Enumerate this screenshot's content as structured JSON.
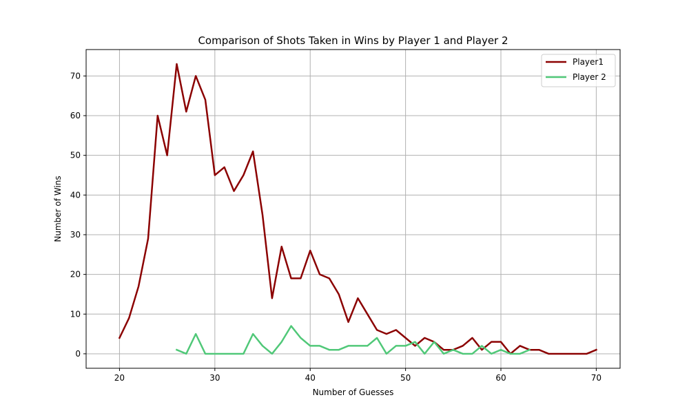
{
  "chart_data": {
    "type": "line",
    "title": "Comparison of Shots Taken in Wins by Player 1 and Player 2",
    "xlabel": "Number of Guesses",
    "ylabel": "Number of Wins",
    "xlim": [
      16.5,
      72.5
    ],
    "ylim": [
      -3.65,
      76.65
    ],
    "xticks": [
      20,
      30,
      40,
      50,
      60,
      70
    ],
    "yticks": [
      0,
      10,
      20,
      30,
      40,
      50,
      60,
      70
    ],
    "grid": true,
    "legend_position": "top-right",
    "series": [
      {
        "name": "Player1",
        "color": "#8b0000",
        "x": [
          20,
          21,
          22,
          23,
          24,
          25,
          26,
          27,
          28,
          29,
          30,
          31,
          32,
          33,
          34,
          35,
          36,
          37,
          38,
          39,
          40,
          41,
          42,
          43,
          44,
          45,
          46,
          47,
          48,
          49,
          50,
          51,
          52,
          53,
          54,
          55,
          56,
          57,
          58,
          59,
          60,
          61,
          62,
          63,
          64,
          65,
          66,
          67,
          68,
          69,
          70
        ],
        "y": [
          4,
          9,
          17,
          29,
          60,
          50,
          73,
          61,
          70,
          64,
          45,
          47,
          41,
          45,
          51,
          35,
          14,
          27,
          19,
          19,
          26,
          20,
          19,
          15,
          8,
          14,
          10,
          6,
          5,
          6,
          4,
          2,
          4,
          3,
          1,
          1,
          2,
          4,
          1,
          3,
          3,
          0,
          2,
          1,
          1,
          0,
          0,
          0,
          0,
          0,
          1
        ]
      },
      {
        "name": "Player 2",
        "color": "#50c878",
        "x": [
          26,
          27,
          28,
          29,
          30,
          31,
          32,
          33,
          34,
          35,
          36,
          37,
          38,
          39,
          40,
          41,
          42,
          43,
          44,
          45,
          46,
          47,
          48,
          49,
          50,
          51,
          52,
          53,
          54,
          55,
          56,
          57,
          58,
          59,
          60,
          61,
          62,
          63
        ],
        "y": [
          1,
          0,
          5,
          0,
          0,
          0,
          0,
          0,
          5,
          2,
          0,
          3,
          7,
          4,
          2,
          2,
          1,
          1,
          2,
          2,
          2,
          4,
          0,
          2,
          2,
          3,
          0,
          3,
          0,
          1,
          0,
          0,
          2,
          0,
          1,
          0,
          0,
          1
        ]
      }
    ]
  }
}
